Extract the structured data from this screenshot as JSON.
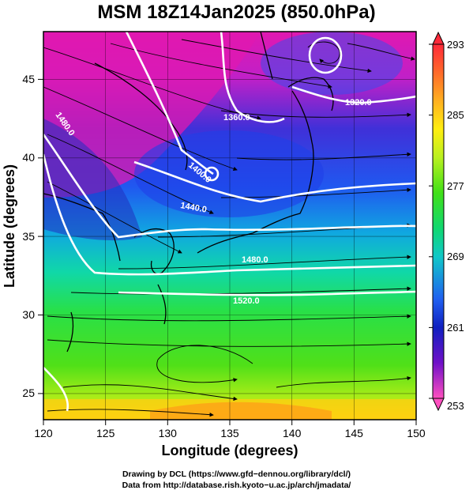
{
  "title": "MSM 18Z14Jan2025 (850.0hPa)",
  "xaxis": {
    "label": "Longitude (degrees)",
    "range": [
      120,
      150
    ],
    "ticks": [
      "120",
      "125",
      "130",
      "135",
      "140",
      "145",
      "150"
    ]
  },
  "yaxis": {
    "label": "Latitude (degrees)",
    "range": [
      22.4,
      47.6
    ],
    "ticks": [
      "25",
      "30",
      "35",
      "40",
      "45"
    ]
  },
  "colorbar": {
    "range": [
      253,
      293
    ],
    "tick_labels": [
      "293",
      "285",
      "277",
      "269",
      "261",
      "253"
    ],
    "colors": [
      "#ff2a3a",
      "#ff6a2a",
      "#ffb020",
      "#ffee10",
      "#b9f020",
      "#40e018",
      "#10d870",
      "#10c8c8",
      "#2060f0",
      "#1020c0",
      "#7010c8",
      "#e010c0",
      "#ff50c0"
    ]
  },
  "contour_labels": {
    "c1320": "1320.0",
    "c1360": "1360.0",
    "c1400": "1400.0",
    "c1440": "1440.0",
    "c1480a": "1480.0",
    "c1480b": "1480.0",
    "c1520": "1520.0"
  },
  "credits": {
    "line1": "Drawing by DCL (https://www.gfd−dennou.org/library/dcl/)",
    "line2": "Data from http://database.rish.kyoto−u.ac.jp/arch/jmadata/"
  }
}
